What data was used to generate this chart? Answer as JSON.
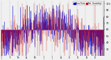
{
  "background_color": "#f0f0f0",
  "ylim": [
    20,
    105
  ],
  "ytick_vals": [
    30,
    40,
    50,
    60,
    70,
    80,
    90,
    100
  ],
  "ytick_labels": [
    "30",
    "40",
    "50",
    "60",
    "70",
    "80",
    "90",
    "100"
  ],
  "blue_color": "#0000cc",
  "red_color": "#cc0000",
  "grid_color": "#888888",
  "n_days": 365,
  "ref_humidity": 60,
  "legend_blue": "Dew Point",
  "legend_red": "Rel. Humidity"
}
